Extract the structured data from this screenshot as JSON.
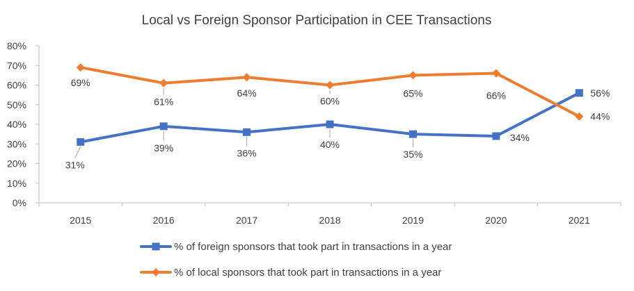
{
  "chart_data": {
    "type": "line",
    "title": "Local vs Foreign Sponsor Participation in CEE Transactions",
    "xlabel": "",
    "ylabel": "",
    "categories": [
      "2015",
      "2016",
      "2017",
      "2018",
      "2019",
      "2020",
      "2021"
    ],
    "ylim": [
      0,
      80
    ],
    "y_tick_step": 10,
    "y_tick_format": "percent",
    "grid": false,
    "legend_position": "bottom",
    "series": [
      {
        "name": "% of foreign sponsors that took part in transactions in a year",
        "values": [
          31,
          39,
          36,
          40,
          35,
          34,
          56
        ],
        "labels": [
          "31%",
          "39%",
          "36%",
          "40%",
          "35%",
          "34%",
          "56%"
        ],
        "color": "#4472c4",
        "marker": "square"
      },
      {
        "name": "% of local sponsors that took part in transactions in a year",
        "values": [
          69,
          61,
          64,
          60,
          65,
          66,
          44
        ],
        "labels": [
          "69%",
          "61%",
          "64%",
          "60%",
          "65%",
          "66%",
          "44%"
        ],
        "color": "#ed7d31",
        "marker": "diamond"
      }
    ]
  }
}
